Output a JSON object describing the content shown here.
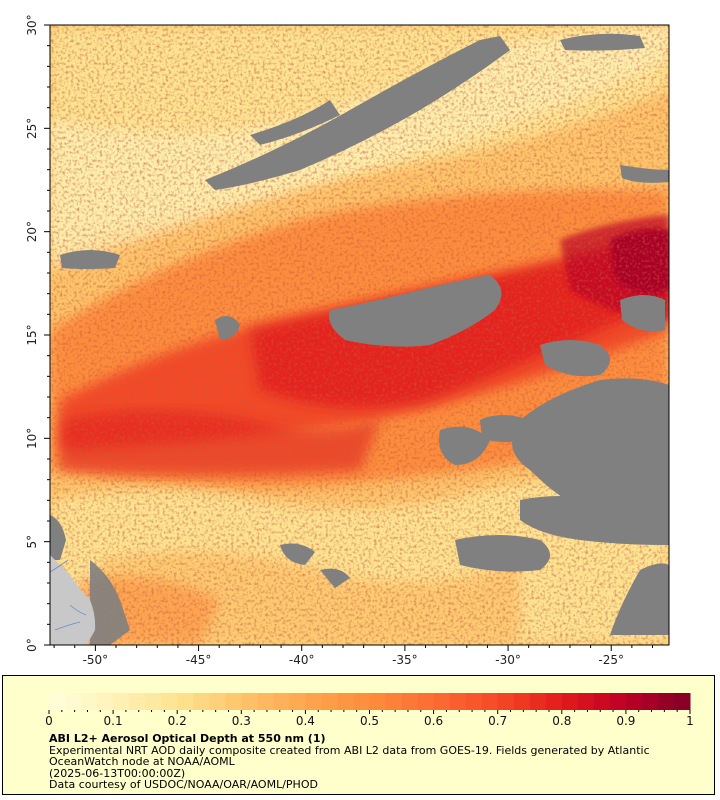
{
  "map": {
    "lon_ticks": [
      "-50°",
      "-45°",
      "-40°",
      "-35°",
      "-30°",
      "-25°"
    ],
    "lat_ticks": [
      "0°",
      "5°",
      "10°",
      "15°",
      "20°",
      "25°",
      "30°"
    ],
    "lon_range": [
      -52.2,
      -22.2
    ],
    "lat_range": [
      0,
      30
    ],
    "colors": {
      "no_data": "#808080",
      "land": "#c8c8c8",
      "frame": "#000000"
    }
  },
  "colorbar": {
    "tick_labels": [
      "0",
      "0.1",
      "0.2",
      "0.3",
      "0.4",
      "0.5",
      "0.6",
      "0.7",
      "0.8",
      "0.9",
      "1"
    ],
    "range": [
      0,
      1
    ],
    "colors": [
      "#ffffdd",
      "#fff2b8",
      "#fee391",
      "#fec46a",
      "#fea64f",
      "#fd8d3c",
      "#fc6c33",
      "#f44a26",
      "#e31a1c",
      "#bd0026",
      "#800026"
    ]
  },
  "caption": {
    "title": "ABI L2+ Aerosol Optical Depth at 550 nm (1)",
    "line1": "Experimental NRT AOD daily composite created from ABI L2 data from GOES-19. Fields generated by Atlantic OceanWatch node at NOAA/AOML",
    "line2": "(2025-06-13T00:00:00Z)",
    "line3": "Data courtesy of USDOC/NOAA/OAR/AOML/PHOD"
  }
}
